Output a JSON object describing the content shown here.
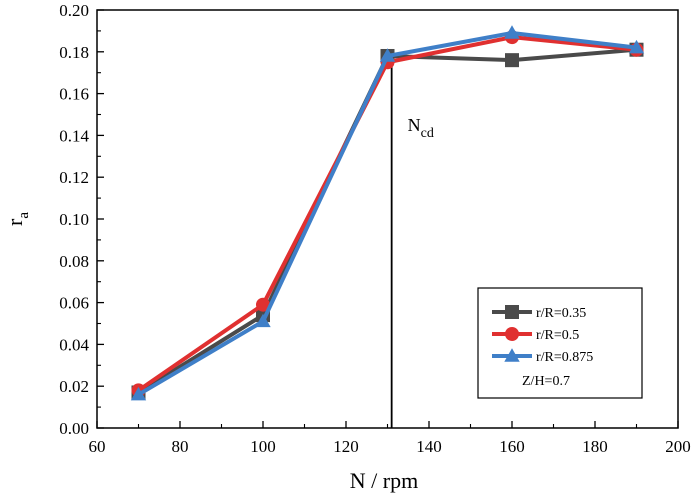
{
  "chart_data": {
    "type": "line",
    "title": "",
    "xlabel": "N / rpm",
    "ylabel_main": "r",
    "ylabel_sub": "a",
    "xlim": [
      60,
      200
    ],
    "ylim": [
      0.0,
      0.2
    ],
    "xticks": [
      60,
      80,
      100,
      120,
      140,
      160,
      180,
      200
    ],
    "xtick_labels": [
      "60",
      "80",
      "100",
      "120",
      "140",
      "160",
      "180",
      "200"
    ],
    "yticks": [
      0.0,
      0.02,
      0.04,
      0.06,
      0.08,
      0.1,
      0.12,
      0.14,
      0.16,
      0.18,
      0.2
    ],
    "ytick_labels": [
      "0.00",
      "0.02",
      "0.04",
      "0.06",
      "0.08",
      "0.10",
      "0.12",
      "0.14",
      "0.16",
      "0.18",
      "0.20"
    ],
    "grid": false,
    "legend_position": "bottom-right",
    "series": [
      {
        "name": "r/R=0.35",
        "color": "#4a4a4a",
        "marker": "square",
        "x": [
          70,
          100,
          130,
          160,
          190
        ],
        "y": [
          0.017,
          0.054,
          0.178,
          0.176,
          0.181
        ]
      },
      {
        "name": "r/R=0.5",
        "color": "#e03030",
        "marker": "circle",
        "x": [
          70,
          100,
          130,
          160,
          190
        ],
        "y": [
          0.018,
          0.059,
          0.175,
          0.187,
          0.181
        ]
      },
      {
        "name": "r/R=0.875",
        "color": "#3f7fc8",
        "marker": "triangle",
        "x": [
          70,
          100,
          130,
          160,
          190
        ],
        "y": [
          0.016,
          0.051,
          0.178,
          0.189,
          0.182
        ]
      }
    ],
    "legend_note": "Z/H=0.7",
    "annotation": {
      "label_main": "N",
      "label_sub": "cd",
      "x": 131,
      "y_from": 0.0,
      "y_to": 0.179
    }
  }
}
